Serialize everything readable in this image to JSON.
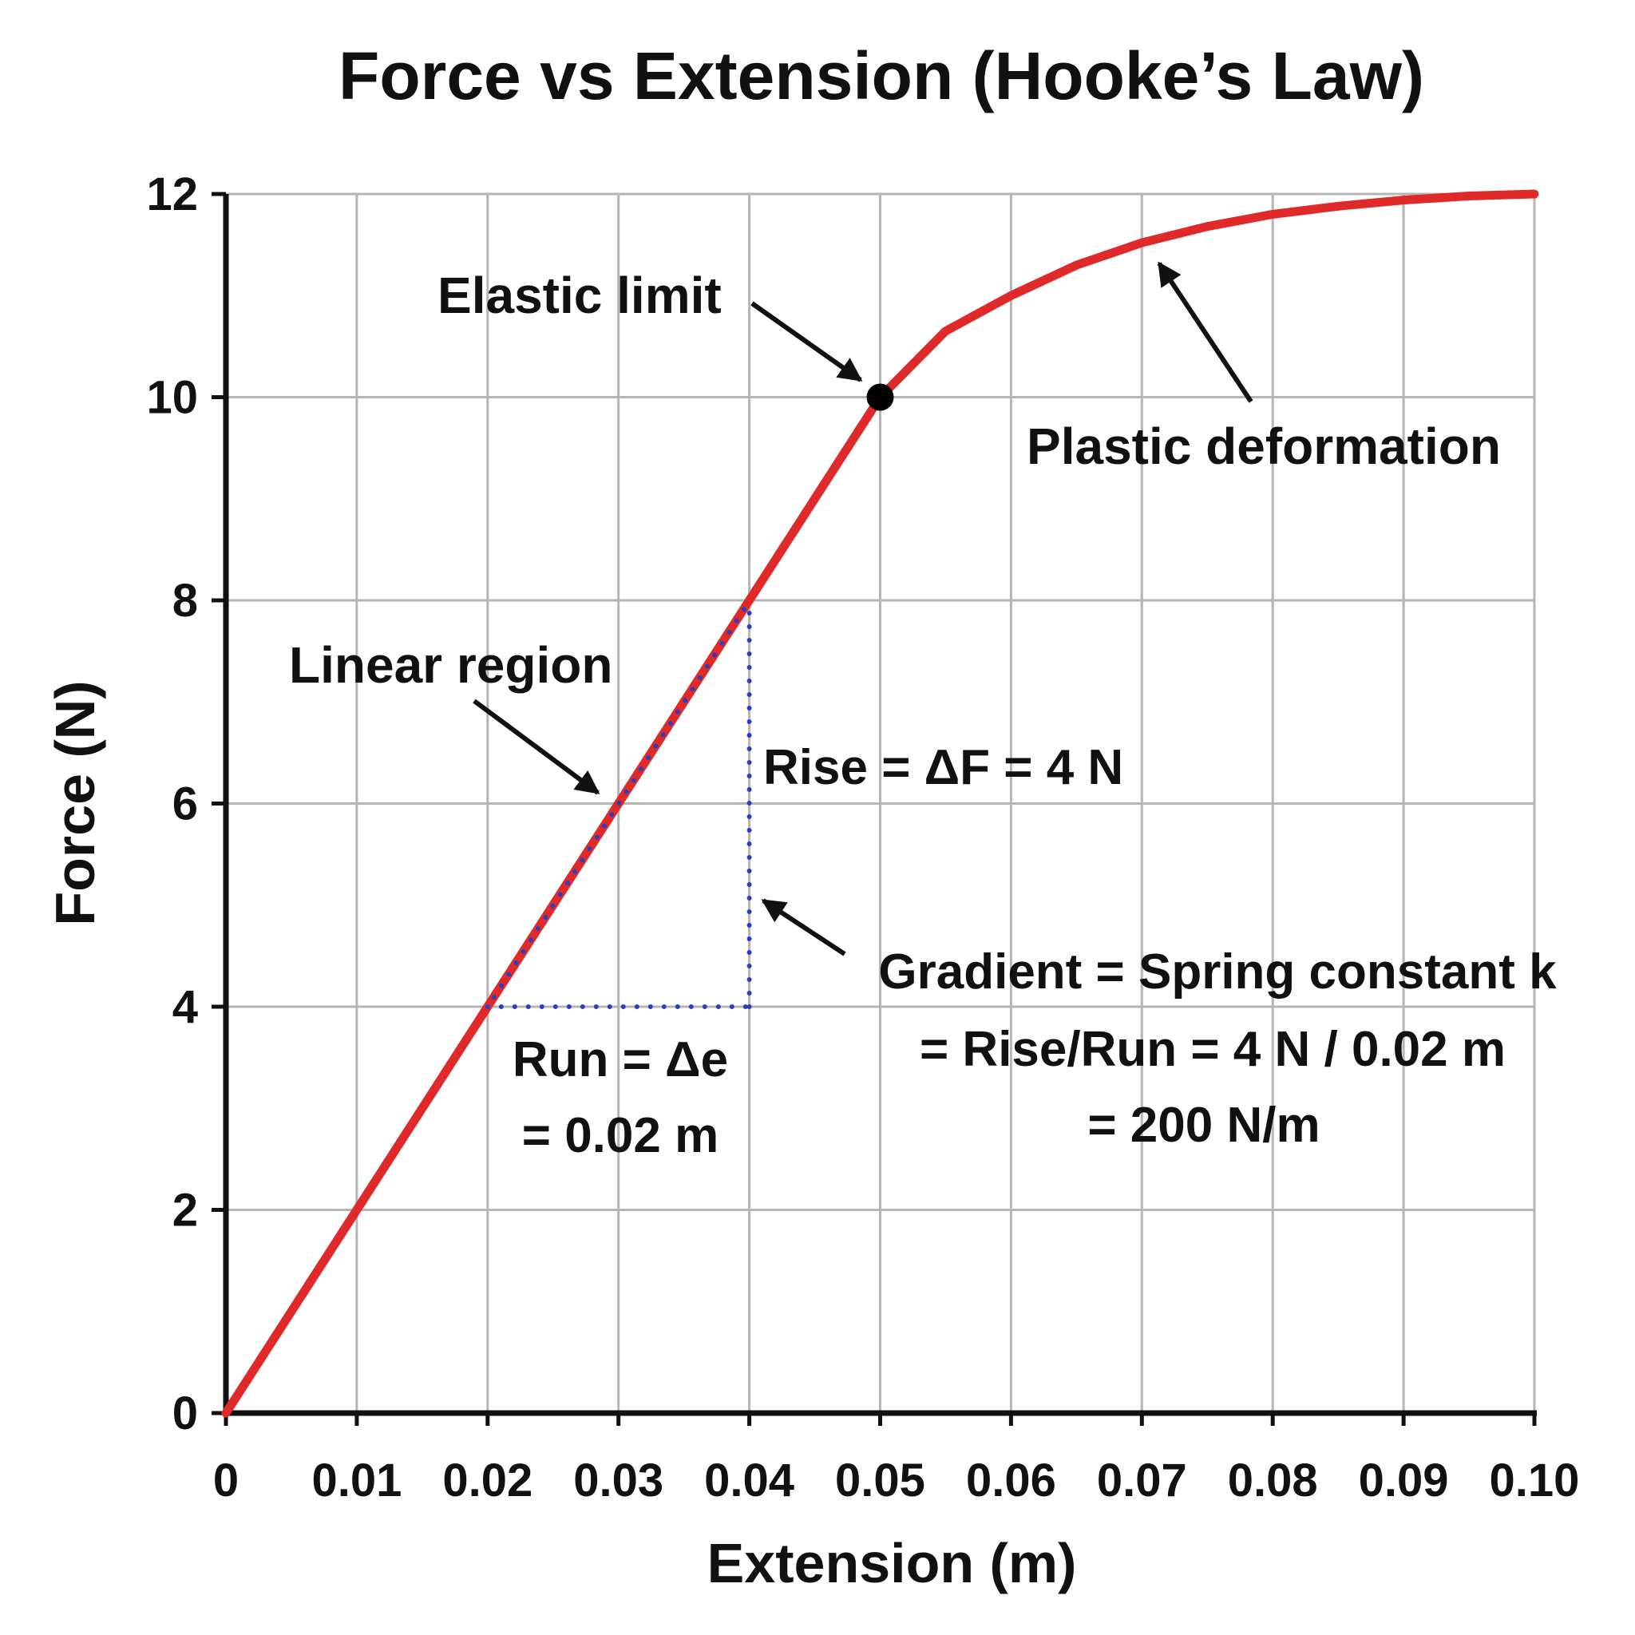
{
  "chart_data": {
    "type": "line",
    "title": "Force vs Extension (Hooke’s Law)",
    "xlabel": "Extension (m)",
    "ylabel": "Force (N)",
    "xlim": [
      0,
      0.1
    ],
    "ylim": [
      0,
      12
    ],
    "grid": true,
    "x_ticks": [
      "0",
      "0.01",
      "0.02",
      "0.03",
      "0.04",
      "0.05",
      "0.06",
      "0.07",
      "0.08",
      "0.09",
      "0.10"
    ],
    "y_ticks": [
      "0",
      "2",
      "4",
      "6",
      "8",
      "10",
      "12"
    ],
    "series": [
      {
        "color": "#e02a2a",
        "x": [
          0,
          0.01,
          0.02,
          0.03,
          0.04,
          0.05,
          0.055,
          0.06,
          0.065,
          0.07,
          0.075,
          0.08,
          0.085,
          0.09,
          0.095,
          0.1
        ],
        "y": [
          0,
          2,
          4,
          6,
          8,
          10,
          10.65,
          11.0,
          11.3,
          11.52,
          11.68,
          11.8,
          11.88,
          11.94,
          11.98,
          12.0
        ]
      }
    ],
    "elastic_limit_point": {
      "x": 0.05,
      "y": 10
    },
    "gradient_triangle": {
      "x1": 0.02,
      "y1": 4,
      "x2": 0.04,
      "y2": 8,
      "color": "#2a3fbf"
    },
    "annotations": {
      "elastic_limit": "Elastic limit",
      "plastic_deformation": "Plastic deformation",
      "linear_region": "Linear region",
      "rise": "Rise = ΔF = 4 N",
      "run_line1": "Run = Δe",
      "run_line2": "= 0.02 m",
      "gradient_line1": "Gradient = Spring constant k",
      "gradient_line2": "= Rise/Run = 4 N / 0.02 m",
      "gradient_line3": "= 200 N/m"
    }
  }
}
